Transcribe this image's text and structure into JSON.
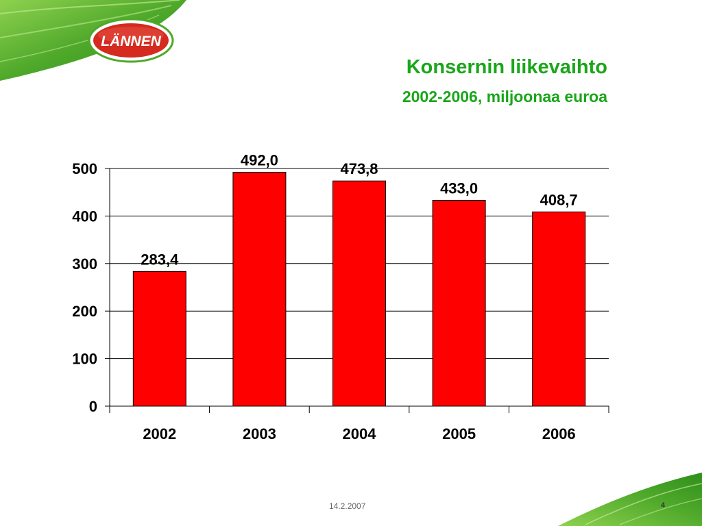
{
  "slide": {
    "logo_text": "LÄNNEN",
    "title": "Konsernin liikevaihto",
    "subtitle": "2002-2006, miljoonaa euroa",
    "footer_date": "14.2.2007",
    "page_number": "4"
  },
  "colors": {
    "title_green": "#1aa61a",
    "bar_fill": "#ff0000",
    "logo_red": "#d42a20",
    "leaf_green_dark": "#2f8f1a",
    "leaf_green_light": "#8fd14f"
  },
  "chart_data": {
    "type": "bar",
    "categories": [
      "2002",
      "2003",
      "2004",
      "2005",
      "2006"
    ],
    "values": [
      283.4,
      492.0,
      473.8,
      433.0,
      408.7
    ],
    "data_labels": [
      "283,4",
      "492,0",
      "473,8",
      "433,0",
      "408,7"
    ],
    "yticks": [
      "0",
      "100",
      "200",
      "300",
      "400",
      "500"
    ],
    "ylim": [
      0,
      500
    ],
    "grid": true,
    "legend": "none"
  }
}
